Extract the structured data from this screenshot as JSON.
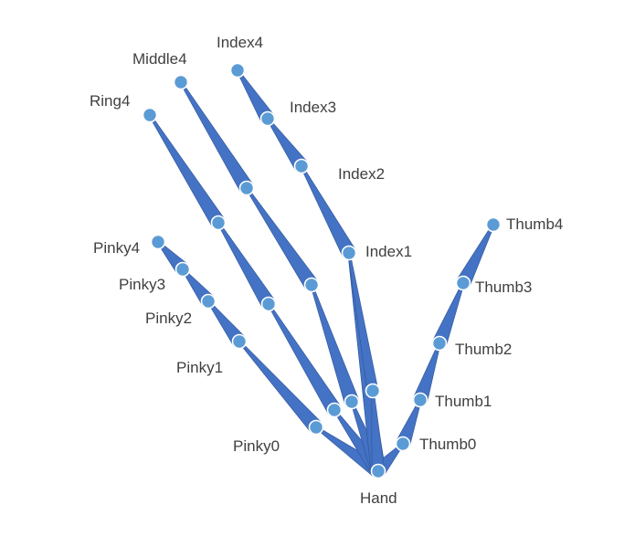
{
  "diagram": {
    "colors": {
      "bone_fill": "#4472c4",
      "joint_fill": "#5b9bd5",
      "joint_outline": "#ffffff",
      "label_text": "#404040",
      "background": "#ffffff"
    },
    "joints": {
      "hand": {
        "label": "Hand"
      },
      "pinky0": {
        "label": "Pinky0"
      },
      "pinky1": {
        "label": "Pinky1"
      },
      "pinky2": {
        "label": "Pinky2"
      },
      "pinky3": {
        "label": "Pinky3"
      },
      "pinky4": {
        "label": "Pinky4"
      },
      "ring4": {
        "label": "Ring4"
      },
      "middle4": {
        "label": "Middle4"
      },
      "index1": {
        "label": "Index1"
      },
      "index2": {
        "label": "Index2"
      },
      "index3": {
        "label": "Index3"
      },
      "index4": {
        "label": "Index4"
      },
      "thumb0": {
        "label": "Thumb0"
      },
      "thumb1": {
        "label": "Thumb1"
      },
      "thumb2": {
        "label": "Thumb2"
      },
      "thumb3": {
        "label": "Thumb3"
      },
      "thumb4": {
        "label": "Thumb4"
      }
    },
    "bones": [
      {
        "from": "hand",
        "to": "pinky0"
      },
      {
        "from": "pinky0",
        "to": "pinky1"
      },
      {
        "from": "pinky1",
        "to": "pinky2"
      },
      {
        "from": "pinky2",
        "to": "pinky3"
      },
      {
        "from": "pinky3",
        "to": "pinky4"
      },
      {
        "from": "hand",
        "to": "ring1"
      },
      {
        "from": "ring1",
        "to": "ring2"
      },
      {
        "from": "ring2",
        "to": "ring3"
      },
      {
        "from": "ring3",
        "to": "ring4"
      },
      {
        "from": "hand",
        "to": "middle1"
      },
      {
        "from": "middle1",
        "to": "middle2"
      },
      {
        "from": "middle2",
        "to": "middle3"
      },
      {
        "from": "middle3",
        "to": "middle4"
      },
      {
        "from": "hand",
        "to": "index1"
      },
      {
        "from": "index1",
        "to": "index2"
      },
      {
        "from": "index2",
        "to": "index3"
      },
      {
        "from": "index3",
        "to": "index4"
      },
      {
        "from": "hand",
        "to": "thumb0"
      },
      {
        "from": "thumb0",
        "to": "thumb1"
      },
      {
        "from": "thumb1",
        "to": "thumb2"
      },
      {
        "from": "thumb2",
        "to": "thumb3"
      },
      {
        "from": "thumb3",
        "to": "thumb4"
      }
    ]
  }
}
